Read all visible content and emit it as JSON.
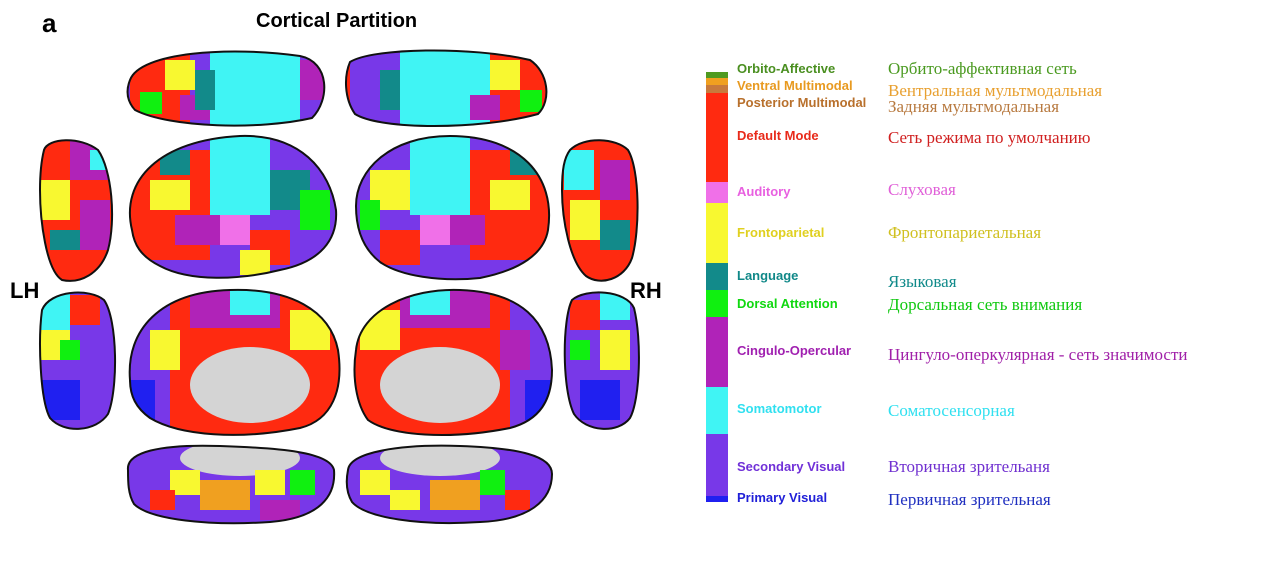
{
  "figure": {
    "panel_letter": "a",
    "title": "Cortical Partition",
    "left_hemisphere_label": "LH",
    "right_hemisphere_label": "RH"
  },
  "legend": {
    "networks": [
      {
        "name_en": "Orbito-Affective",
        "name_ru": "Орбито-аффективная сеть",
        "color": "#4f9a20",
        "text_color": "#4a8f20",
        "ru_color": "#4a9a20"
      },
      {
        "name_en": "Ventral Multimodal",
        "name_ru": "Вентральная мультмодальная",
        "color": "#f0a020",
        "text_color": "#e89a20",
        "ru_color": "#e8a030"
      },
      {
        "name_en": "Posterior Multimodal",
        "name_ru": "Задняя мультмодальная",
        "color": "#c87a3c",
        "text_color": "#b8702c",
        "ru_color": "#b87a40"
      },
      {
        "name_en": "Default Mode",
        "name_ru": "Сеть режима по умолчанию",
        "color": "#ff2a10",
        "text_color": "#e82a1a",
        "ru_color": "#d02020"
      },
      {
        "name_en": "Auditory",
        "name_ru": "Слуховая",
        "color": "#f070e8",
        "text_color": "#e860e0",
        "ru_color": "#e060d8"
      },
      {
        "name_en": "Frontoparietal",
        "name_ru": "Фронтопариетальная",
        "color": "#f8f830",
        "text_color": "#e0d020",
        "ru_color": "#d0c020"
      },
      {
        "name_en": "Language",
        "name_ru": "Языковая",
        "color": "#128a8a",
        "text_color": "#108888",
        "ru_color": "#108a8a"
      },
      {
        "name_en": "Dorsal Attention",
        "name_ru": "Дорсальная сеть внимания",
        "color": "#10f010",
        "text_color": "#10d810",
        "ru_color": "#10c810"
      },
      {
        "name_en": "Cingulo-Opercular",
        "name_ru": "Цингуло-оперкулярная - сеть значимости",
        "color": "#b023b8",
        "text_color": "#a020b0",
        "ru_color": "#a020a8"
      },
      {
        "name_en": "Somatomotor",
        "name_ru": "Соматосенсорная",
        "color": "#40f4f4",
        "text_color": "#30e0f0",
        "ru_color": "#30e0f0"
      },
      {
        "name_en": "Secondary Visual",
        "name_ru": "Вторичная зрительаня",
        "color": "#7838e8",
        "text_color": "#7030d8",
        "ru_color": "#7030d0"
      },
      {
        "name_en": "Primary Visual",
        "name_ru": "Первичная зрительная",
        "color": "#2020f0",
        "text_color": "#2020d8",
        "ru_color": "#2030c0"
      }
    ]
  },
  "colors": {
    "outline": "#111111",
    "medial_wall": "#d4d4d4"
  }
}
